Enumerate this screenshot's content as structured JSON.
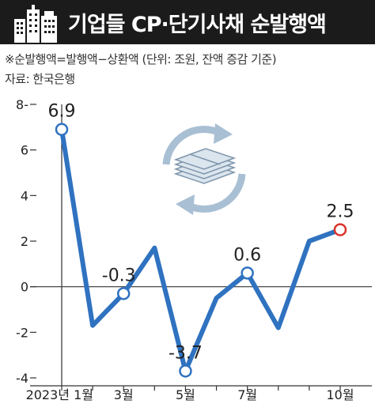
{
  "header": {
    "title": "기업들 CP·단기사채 순발행액",
    "icon": "building-icon"
  },
  "notes": {
    "definition": "※순발행액=발행액−상환액 (단위: 조원, 잔액 증감 기준)",
    "source": "자료: 한국은행"
  },
  "illustration": {
    "icon": "money-cycle-icon"
  },
  "colors": {
    "line": "#2f72c0",
    "highlight": "#d9332b",
    "header_bg": "#1b1b1b"
  },
  "chart_data": {
    "type": "line",
    "title": "기업들 CP·단기사채 순발행액",
    "ylabel": "",
    "xlabel": "",
    "ylim": [
      -4,
      8
    ],
    "yticks": [
      -4,
      -2,
      0,
      2,
      4,
      6,
      8
    ],
    "ytick_labels": [
      "-4",
      "-2",
      "0",
      "2",
      "4",
      "6",
      "8-"
    ],
    "grid": false,
    "x": [
      "2023-01",
      "2023-02",
      "2023-03",
      "2023-04",
      "2023-05",
      "2023-06",
      "2023-07",
      "2023-08",
      "2023-09",
      "2023-10"
    ],
    "xtick_labels": [
      "2023년 1월",
      "",
      "3월",
      "",
      "5월",
      "",
      "7월",
      "",
      "",
      "10월"
    ],
    "values": [
      6.9,
      -1.7,
      -0.3,
      1.7,
      -3.7,
      -0.5,
      0.6,
      -1.8,
      2.0,
      2.5
    ],
    "data_labels": [
      {
        "index": 0,
        "text": "6.9"
      },
      {
        "index": 2,
        "text": "-0.3"
      },
      {
        "index": 4,
        "text": "-3.7"
      },
      {
        "index": 6,
        "text": "0.6"
      },
      {
        "index": 9,
        "text": "2.5",
        "highlight": true
      }
    ]
  }
}
